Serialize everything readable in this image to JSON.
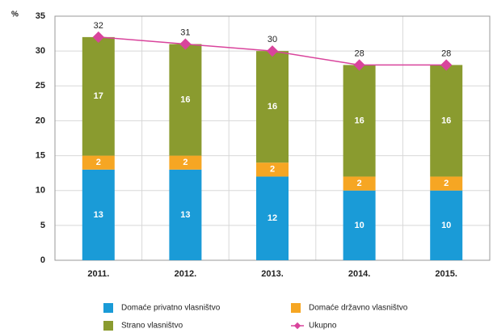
{
  "chart_data": {
    "type": "stacked-bar-line",
    "y_axis_label": "%",
    "categories": [
      "2011.",
      "2012.",
      "2013.",
      "2014.",
      "2015."
    ],
    "series": [
      {
        "name": "Domaće privatno vlasništvo",
        "color": "#1a9bd7",
        "values": [
          13,
          13,
          12,
          10,
          10
        ]
      },
      {
        "name": "Domaće državno vlasništvo",
        "color": "#f6a623",
        "values": [
          2,
          2,
          2,
          2,
          2
        ]
      },
      {
        "name": "Strano vlasništvo",
        "color": "#8a9b2f",
        "values": [
          17,
          16,
          16,
          16,
          16
        ]
      },
      {
        "name": "Ukupno",
        "color": "#d9449c",
        "type": "line",
        "values": [
          32,
          31,
          30,
          28,
          28
        ]
      }
    ],
    "ylim": [
      0,
      35
    ],
    "yticks": [
      0,
      5,
      10,
      15,
      20,
      25,
      30,
      35
    ],
    "grid": true
  }
}
